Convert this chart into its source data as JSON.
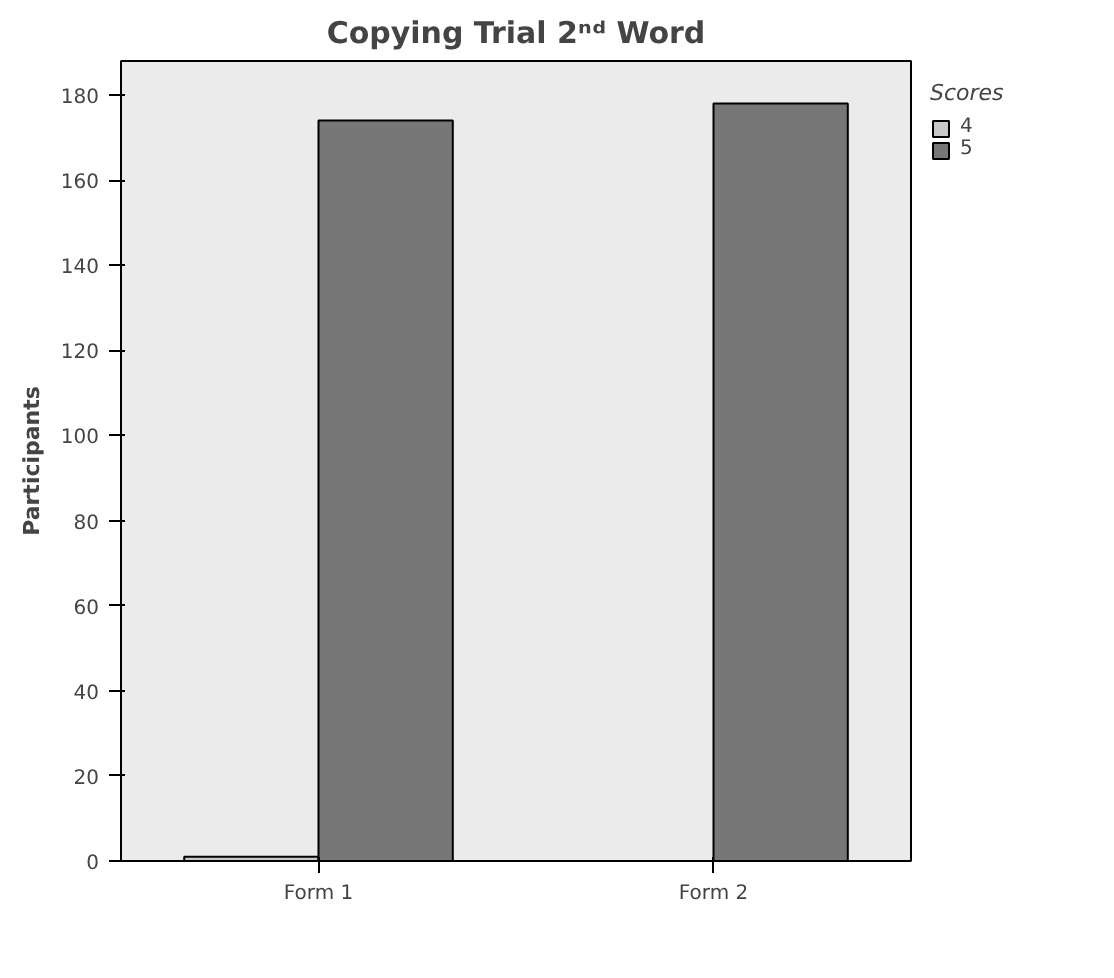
{
  "chart_data": {
    "type": "bar",
    "title": "Copying Trial 2ⁿᵈ Word",
    "ylabel": "Participants",
    "legend_title": "Scores",
    "categories": [
      "Form 1",
      "Form 2"
    ],
    "series": [
      {
        "name": "4",
        "color": "#c8c8c8",
        "values": [
          1,
          null
        ]
      },
      {
        "name": "5",
        "color": "#777777",
        "values": [
          174,
          178
        ]
      }
    ],
    "ylim": [
      0,
      188
    ],
    "yticks": [
      0,
      20,
      40,
      60,
      80,
      100,
      120,
      140,
      160,
      180
    ],
    "grid": false,
    "legend": "right"
  }
}
